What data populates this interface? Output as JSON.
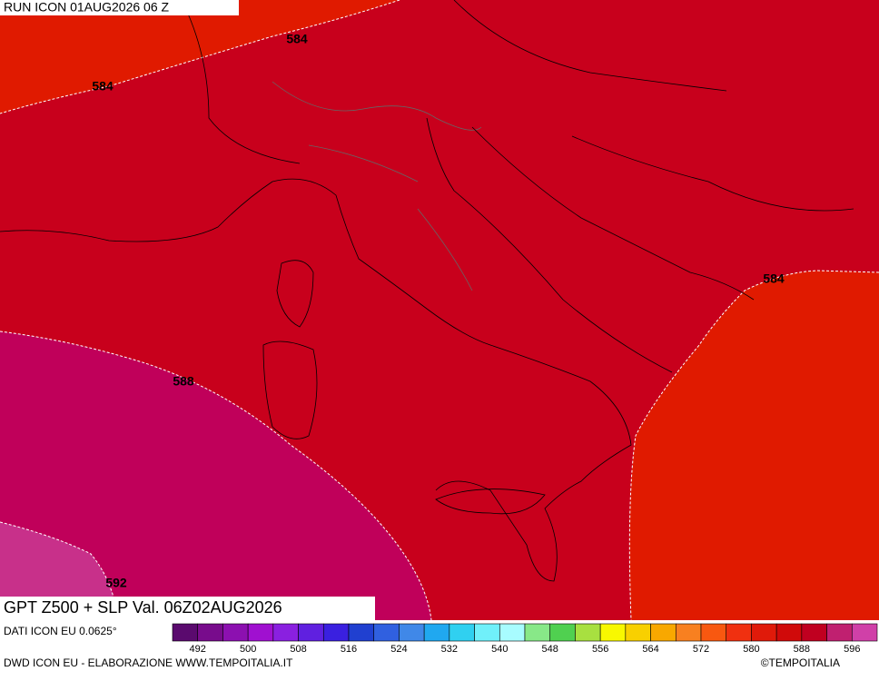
{
  "header": {
    "run": "RUN ICON 01AUG2026 06 Z"
  },
  "contour_labels": [
    "584",
    "584",
    "584",
    "588",
    "592"
  ],
  "title": "GPT Z500 + SLP Val. 06Z02AUG2026",
  "source": "DATI ICON EU 0.0625°",
  "legend": {
    "colors": [
      "#5a0a6e",
      "#780c8c",
      "#8c10b0",
      "#a010d0",
      "#8a20e0",
      "#6020e0",
      "#3a20e0",
      "#2040d0",
      "#3060e0",
      "#4088e8",
      "#20a8f0",
      "#30d0f0",
      "#70f0fa",
      "#a8fcff",
      "#88e888",
      "#50d050",
      "#a8e040",
      "#f8f800",
      "#f8d000",
      "#f8a800",
      "#f88020",
      "#f85810",
      "#f03010",
      "#e01a0a",
      "#d00a0a",
      "#c00020",
      "#c02070",
      "#d040a8"
    ],
    "ticks": [
      492,
      500,
      508,
      516,
      524,
      532,
      540,
      548,
      556,
      564,
      572,
      580,
      588,
      596
    ]
  },
  "footer": {
    "left": "DWD ICON EU - ELABORAZIONE WWW.TEMPOITALIA.IT",
    "right": "©TEMPOITALIA"
  }
}
